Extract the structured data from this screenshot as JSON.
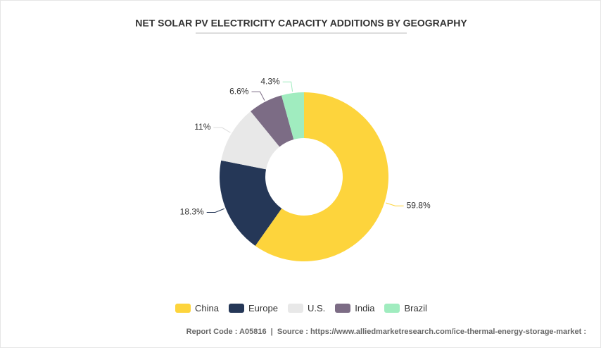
{
  "chart_data": {
    "type": "donut",
    "title": "NET SOLAR PV ELECTRICITY CAPACITY ADDITIONS BY GEOGRAPHY",
    "categories": [
      "China",
      "Europe",
      "U.S.",
      "India",
      "Brazil"
    ],
    "values": [
      59.8,
      18.3,
      11,
      6.6,
      4.3
    ],
    "value_labels": [
      "59.8%",
      "18.3%",
      "11%",
      "6.6%",
      "4.3%"
    ],
    "colors": [
      "#fdd43c",
      "#253757",
      "#e8e8e8",
      "#7c6c85",
      "#a0ecbf"
    ],
    "legend": "bottom"
  },
  "footer": "Report Code : A05816  |  Source : https://www.alliedmarketresearch.com/ice-thermal-energy-storage-market :"
}
